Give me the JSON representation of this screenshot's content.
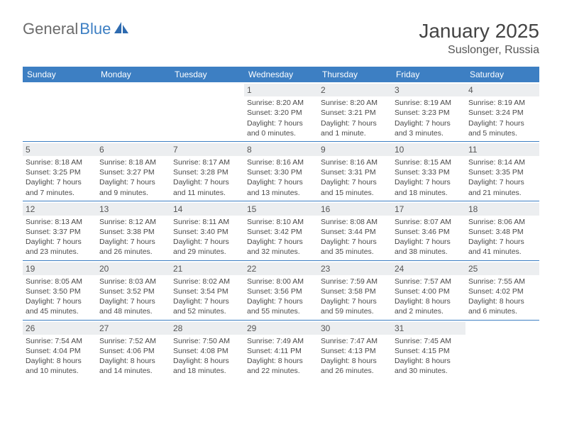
{
  "logo": {
    "text1": "General",
    "text2": "Blue"
  },
  "title": "January 2025",
  "location": "Suslonger, Russia",
  "colors": {
    "header_bg": "#3d7fc3",
    "header_text": "#ffffff",
    "numband_bg": "#eceef0",
    "border": "#3d7fc3",
    "body_text": "#4a4a4a",
    "logo_gray": "#6b6b6b",
    "logo_blue": "#3d7fc3",
    "page_bg": "#ffffff"
  },
  "day_names": [
    "Sunday",
    "Monday",
    "Tuesday",
    "Wednesday",
    "Thursday",
    "Friday",
    "Saturday"
  ],
  "weeks": [
    [
      {
        "n": "",
        "sr": "",
        "ss": "",
        "dl": ""
      },
      {
        "n": "",
        "sr": "",
        "ss": "",
        "dl": ""
      },
      {
        "n": "",
        "sr": "",
        "ss": "",
        "dl": ""
      },
      {
        "n": "1",
        "sr": "Sunrise: 8:20 AM",
        "ss": "Sunset: 3:20 PM",
        "dl": "Daylight: 7 hours and 0 minutes."
      },
      {
        "n": "2",
        "sr": "Sunrise: 8:20 AM",
        "ss": "Sunset: 3:21 PM",
        "dl": "Daylight: 7 hours and 1 minute."
      },
      {
        "n": "3",
        "sr": "Sunrise: 8:19 AM",
        "ss": "Sunset: 3:23 PM",
        "dl": "Daylight: 7 hours and 3 minutes."
      },
      {
        "n": "4",
        "sr": "Sunrise: 8:19 AM",
        "ss": "Sunset: 3:24 PM",
        "dl": "Daylight: 7 hours and 5 minutes."
      }
    ],
    [
      {
        "n": "5",
        "sr": "Sunrise: 8:18 AM",
        "ss": "Sunset: 3:25 PM",
        "dl": "Daylight: 7 hours and 7 minutes."
      },
      {
        "n": "6",
        "sr": "Sunrise: 8:18 AM",
        "ss": "Sunset: 3:27 PM",
        "dl": "Daylight: 7 hours and 9 minutes."
      },
      {
        "n": "7",
        "sr": "Sunrise: 8:17 AM",
        "ss": "Sunset: 3:28 PM",
        "dl": "Daylight: 7 hours and 11 minutes."
      },
      {
        "n": "8",
        "sr": "Sunrise: 8:16 AM",
        "ss": "Sunset: 3:30 PM",
        "dl": "Daylight: 7 hours and 13 minutes."
      },
      {
        "n": "9",
        "sr": "Sunrise: 8:16 AM",
        "ss": "Sunset: 3:31 PM",
        "dl": "Daylight: 7 hours and 15 minutes."
      },
      {
        "n": "10",
        "sr": "Sunrise: 8:15 AM",
        "ss": "Sunset: 3:33 PM",
        "dl": "Daylight: 7 hours and 18 minutes."
      },
      {
        "n": "11",
        "sr": "Sunrise: 8:14 AM",
        "ss": "Sunset: 3:35 PM",
        "dl": "Daylight: 7 hours and 21 minutes."
      }
    ],
    [
      {
        "n": "12",
        "sr": "Sunrise: 8:13 AM",
        "ss": "Sunset: 3:37 PM",
        "dl": "Daylight: 7 hours and 23 minutes."
      },
      {
        "n": "13",
        "sr": "Sunrise: 8:12 AM",
        "ss": "Sunset: 3:38 PM",
        "dl": "Daylight: 7 hours and 26 minutes."
      },
      {
        "n": "14",
        "sr": "Sunrise: 8:11 AM",
        "ss": "Sunset: 3:40 PM",
        "dl": "Daylight: 7 hours and 29 minutes."
      },
      {
        "n": "15",
        "sr": "Sunrise: 8:10 AM",
        "ss": "Sunset: 3:42 PM",
        "dl": "Daylight: 7 hours and 32 minutes."
      },
      {
        "n": "16",
        "sr": "Sunrise: 8:08 AM",
        "ss": "Sunset: 3:44 PM",
        "dl": "Daylight: 7 hours and 35 minutes."
      },
      {
        "n": "17",
        "sr": "Sunrise: 8:07 AM",
        "ss": "Sunset: 3:46 PM",
        "dl": "Daylight: 7 hours and 38 minutes."
      },
      {
        "n": "18",
        "sr": "Sunrise: 8:06 AM",
        "ss": "Sunset: 3:48 PM",
        "dl": "Daylight: 7 hours and 41 minutes."
      }
    ],
    [
      {
        "n": "19",
        "sr": "Sunrise: 8:05 AM",
        "ss": "Sunset: 3:50 PM",
        "dl": "Daylight: 7 hours and 45 minutes."
      },
      {
        "n": "20",
        "sr": "Sunrise: 8:03 AM",
        "ss": "Sunset: 3:52 PM",
        "dl": "Daylight: 7 hours and 48 minutes."
      },
      {
        "n": "21",
        "sr": "Sunrise: 8:02 AM",
        "ss": "Sunset: 3:54 PM",
        "dl": "Daylight: 7 hours and 52 minutes."
      },
      {
        "n": "22",
        "sr": "Sunrise: 8:00 AM",
        "ss": "Sunset: 3:56 PM",
        "dl": "Daylight: 7 hours and 55 minutes."
      },
      {
        "n": "23",
        "sr": "Sunrise: 7:59 AM",
        "ss": "Sunset: 3:58 PM",
        "dl": "Daylight: 7 hours and 59 minutes."
      },
      {
        "n": "24",
        "sr": "Sunrise: 7:57 AM",
        "ss": "Sunset: 4:00 PM",
        "dl": "Daylight: 8 hours and 2 minutes."
      },
      {
        "n": "25",
        "sr": "Sunrise: 7:55 AM",
        "ss": "Sunset: 4:02 PM",
        "dl": "Daylight: 8 hours and 6 minutes."
      }
    ],
    [
      {
        "n": "26",
        "sr": "Sunrise: 7:54 AM",
        "ss": "Sunset: 4:04 PM",
        "dl": "Daylight: 8 hours and 10 minutes."
      },
      {
        "n": "27",
        "sr": "Sunrise: 7:52 AM",
        "ss": "Sunset: 4:06 PM",
        "dl": "Daylight: 8 hours and 14 minutes."
      },
      {
        "n": "28",
        "sr": "Sunrise: 7:50 AM",
        "ss": "Sunset: 4:08 PM",
        "dl": "Daylight: 8 hours and 18 minutes."
      },
      {
        "n": "29",
        "sr": "Sunrise: 7:49 AM",
        "ss": "Sunset: 4:11 PM",
        "dl": "Daylight: 8 hours and 22 minutes."
      },
      {
        "n": "30",
        "sr": "Sunrise: 7:47 AM",
        "ss": "Sunset: 4:13 PM",
        "dl": "Daylight: 8 hours and 26 minutes."
      },
      {
        "n": "31",
        "sr": "Sunrise: 7:45 AM",
        "ss": "Sunset: 4:15 PM",
        "dl": "Daylight: 8 hours and 30 minutes."
      },
      {
        "n": "",
        "sr": "",
        "ss": "",
        "dl": ""
      }
    ]
  ]
}
